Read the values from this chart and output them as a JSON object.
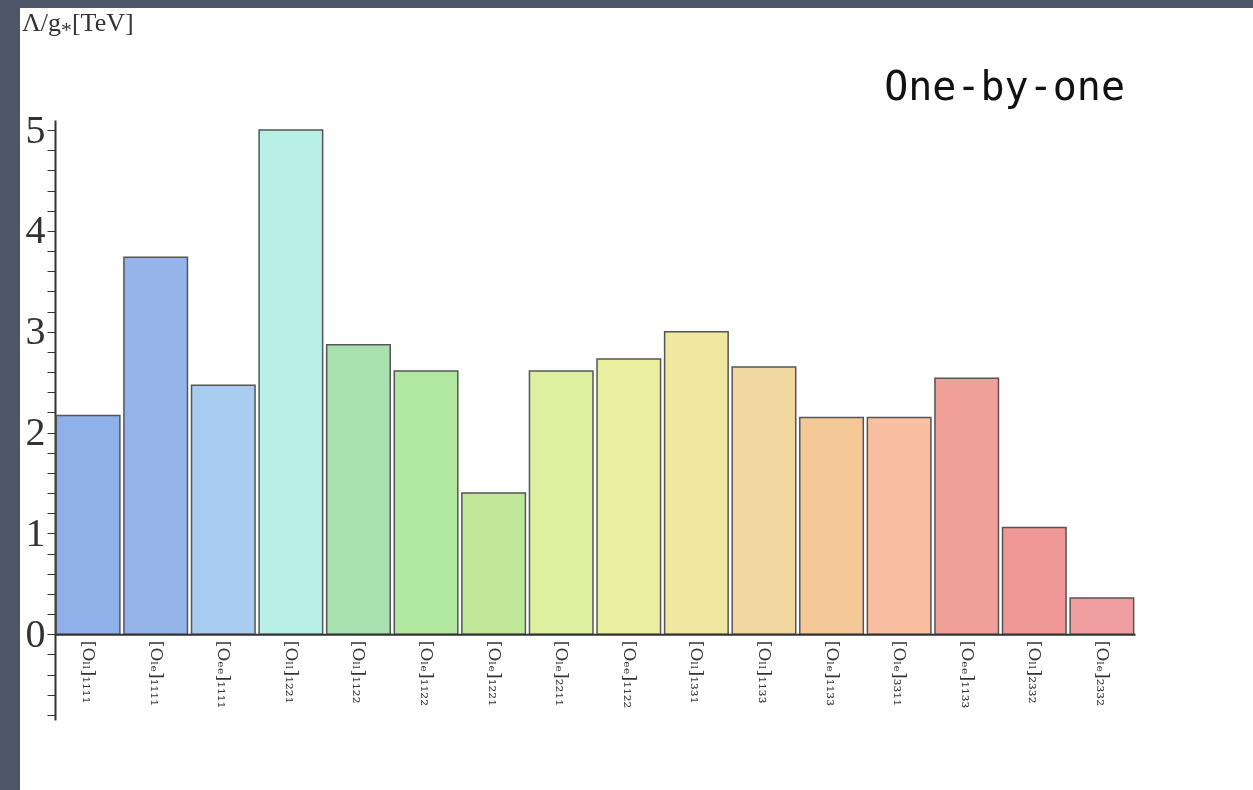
{
  "chart_data": {
    "type": "bar",
    "ylabel": "Λ/g$_{*}$[TeV]",
    "annotations": [
      "One-by-one"
    ],
    "categories": [
      "[Oₗₗ]₁₁₁₁",
      "[Oₗₑ]₁₁₁₁",
      "[Oₑₑ]₁₁₁₁",
      "[Oₗₗ]₁₂₂₁",
      "[Oₗₗ]₁₁₂₂",
      "[Oₗₑ]₁₁₂₂",
      "[Oₗₑ]₁₂₂₁",
      "[Oₗₑ]₂₂₁₁",
      "[Oₑₑ]₁₁₂₂",
      "[Oₗₗ]₁₃₃₁",
      "[Oₗₗ]₁₁₃₃",
      "[Oₗₑ]₁₁₃₃",
      "[Oₗₑ]₃₃₁₁",
      "[Oₑₑ]₁₁₃₃",
      "[Oₗₗ]₂₃₃₂",
      "[Oₗₑ]₂₃₃₂"
    ],
    "values": [
      2.17,
      3.74,
      2.47,
      5.0,
      2.87,
      2.61,
      1.4,
      2.61,
      2.73,
      3.0,
      2.65,
      2.15,
      2.15,
      2.54,
      1.06,
      0.36
    ],
    "colors": [
      "#8fb0e8",
      "#94b4ea",
      "#a8cdf0",
      "#b8f0e8",
      "#a8e0b0",
      "#b0e8a0",
      "#c0e898",
      "#dcf0a0",
      "#e8f0a0",
      "#f0e8a0",
      "#f0d8a0",
      "#f5c898",
      "#f8c0a0",
      "#f0a098",
      "#f09898",
      "#f0a0a0"
    ],
    "ylim": [
      -0.85,
      5.1
    ],
    "yticks": [
      {
        "value": -0.8,
        "label": null
      },
      {
        "value": -0.6,
        "label": null
      },
      {
        "value": -0.4,
        "label": null
      },
      {
        "value": -0.2,
        "label": null
      },
      0,
      {
        "value": 0.2,
        "label": null
      },
      {
        "value": 0.4,
        "label": null
      },
      {
        "value": 0.6,
        "label": null
      },
      {
        "value": 0.8,
        "label": null
      },
      1,
      {
        "value": 1.2,
        "label": null
      },
      {
        "value": 1.4,
        "label": null
      },
      {
        "value": 1.6,
        "label": null
      },
      {
        "value": 1.8,
        "label": null
      },
      2,
      {
        "value": 2.2,
        "label": null
      },
      {
        "value": 2.4,
        "label": null
      },
      {
        "value": 2.6,
        "label": null
      },
      {
        "value": 2.8,
        "label": null
      },
      3,
      {
        "value": 3.2,
        "label": null
      },
      {
        "value": 3.4,
        "label": null
      },
      {
        "value": 3.6,
        "label": null
      },
      {
        "value": 3.8,
        "label": null
      },
      4,
      {
        "value": 4.2,
        "label": null
      },
      {
        "value": 4.4,
        "label": null
      },
      {
        "value": 4.6,
        "label": null
      },
      {
        "value": 4.8,
        "label": null
      },
      5
    ]
  }
}
